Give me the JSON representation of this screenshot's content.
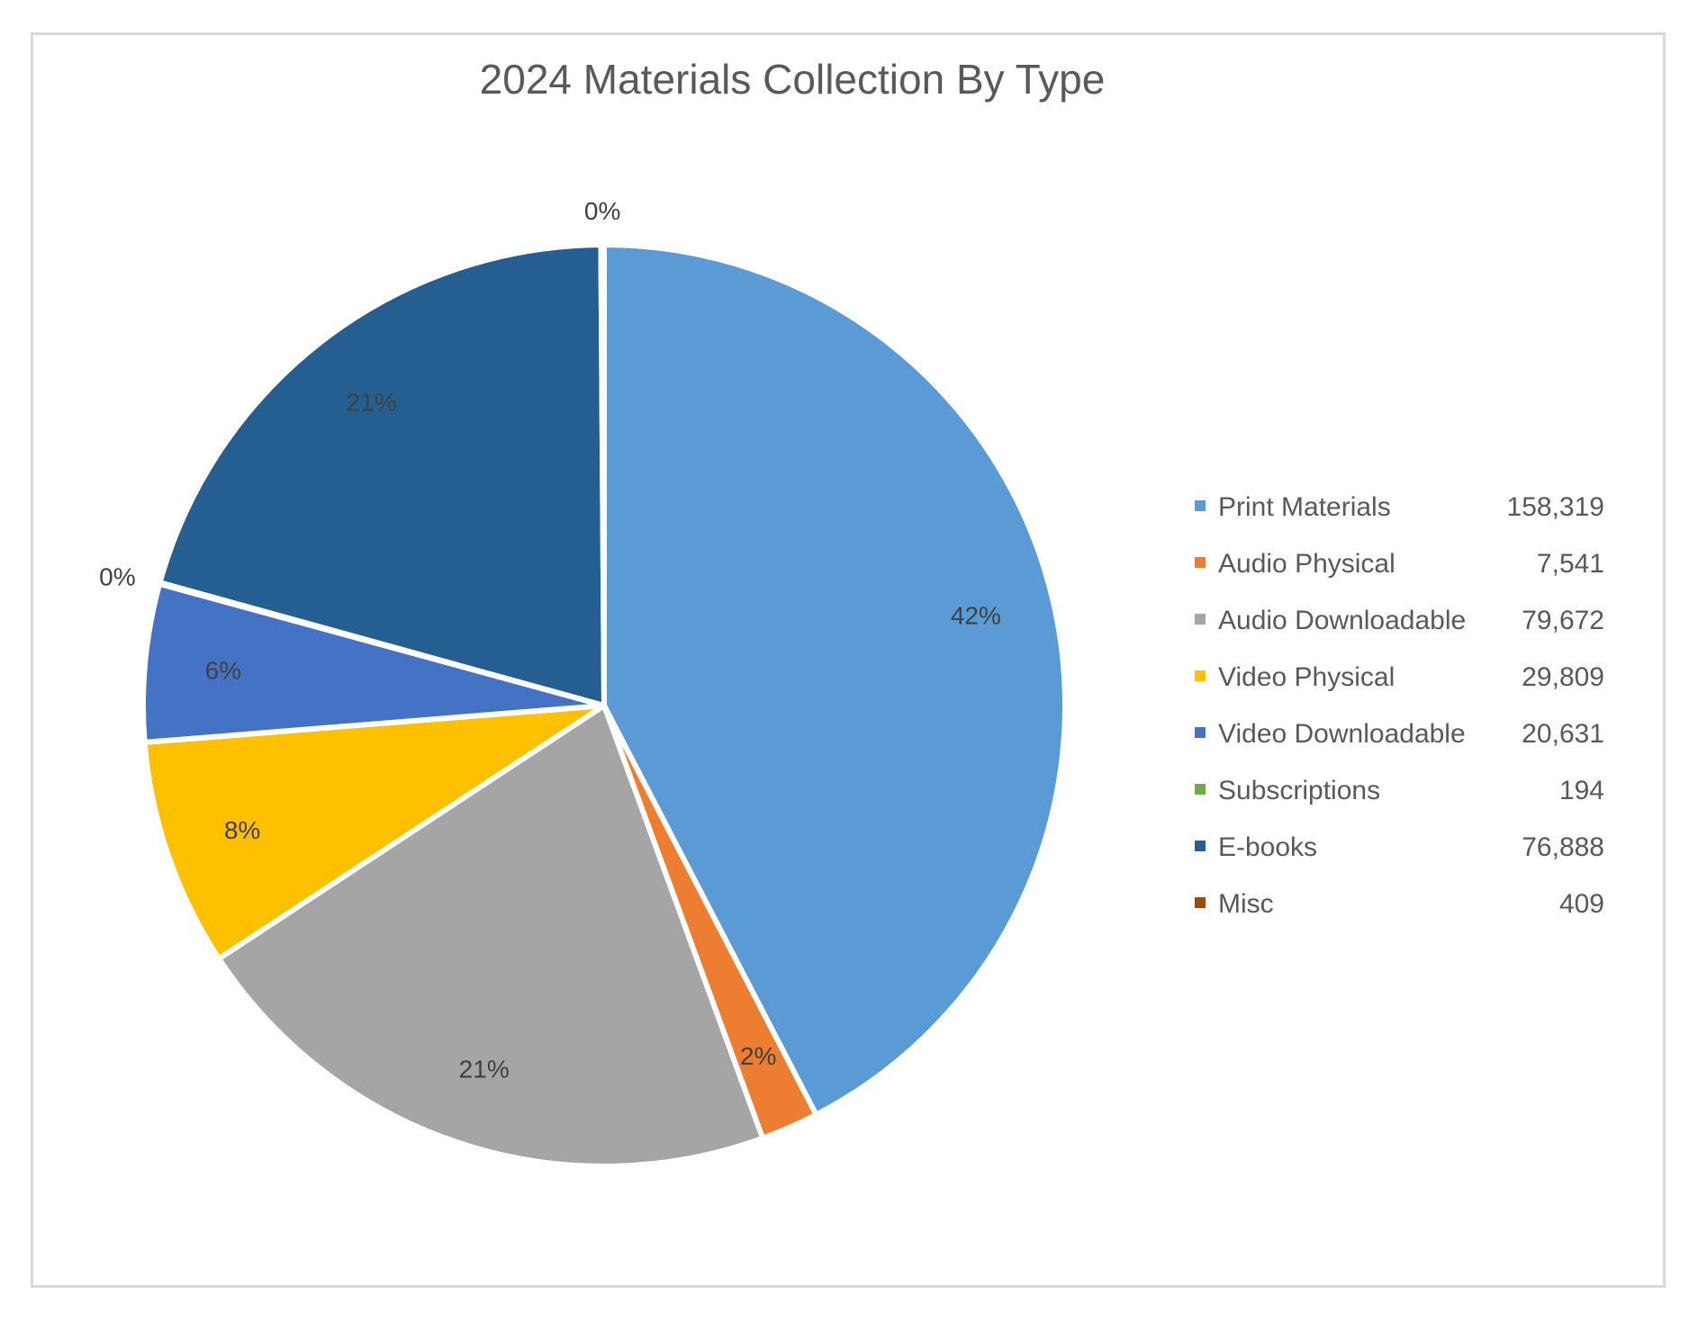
{
  "chart_data": {
    "type": "pie",
    "title": "2024 Materials Collection By Type",
    "legend_position": "right",
    "slices": [
      {
        "label": "Print Materials",
        "value": 158319,
        "value_text": "158,319",
        "percent_label": "42%",
        "color": "#5b9bd5",
        "label_color": "#404040"
      },
      {
        "label": "Audio Physical",
        "value": 7541,
        "value_text": "7,541",
        "percent_label": "2%",
        "color": "#ed7d31",
        "label_color": "#404040"
      },
      {
        "label": "Audio Downloadable",
        "value": 79672,
        "value_text": "79,672",
        "percent_label": "21%",
        "color": "#a5a5a5",
        "label_color": "#404040"
      },
      {
        "label": "Video Physical",
        "value": 29809,
        "value_text": "29,809",
        "percent_label": "8%",
        "color": "#ffc000",
        "label_color": "#404040"
      },
      {
        "label": "Video Downloadable",
        "value": 20631,
        "value_text": "20,631",
        "percent_label": "6%",
        "color": "#4472c4",
        "label_color": "#404040"
      },
      {
        "label": "Subscriptions",
        "value": 194,
        "value_text": "194",
        "percent_label": "0%",
        "color": "#70ad47",
        "label_color": "#404040"
      },
      {
        "label": "E-books",
        "value": 76888,
        "value_text": "76,888",
        "percent_label": "21%",
        "color": "#255e91",
        "label_color": "#404040"
      },
      {
        "label": "Misc",
        "value": 409,
        "value_text": "409",
        "percent_label": "0%",
        "color": "#9e480e",
        "label_color": "#404040"
      }
    ]
  }
}
